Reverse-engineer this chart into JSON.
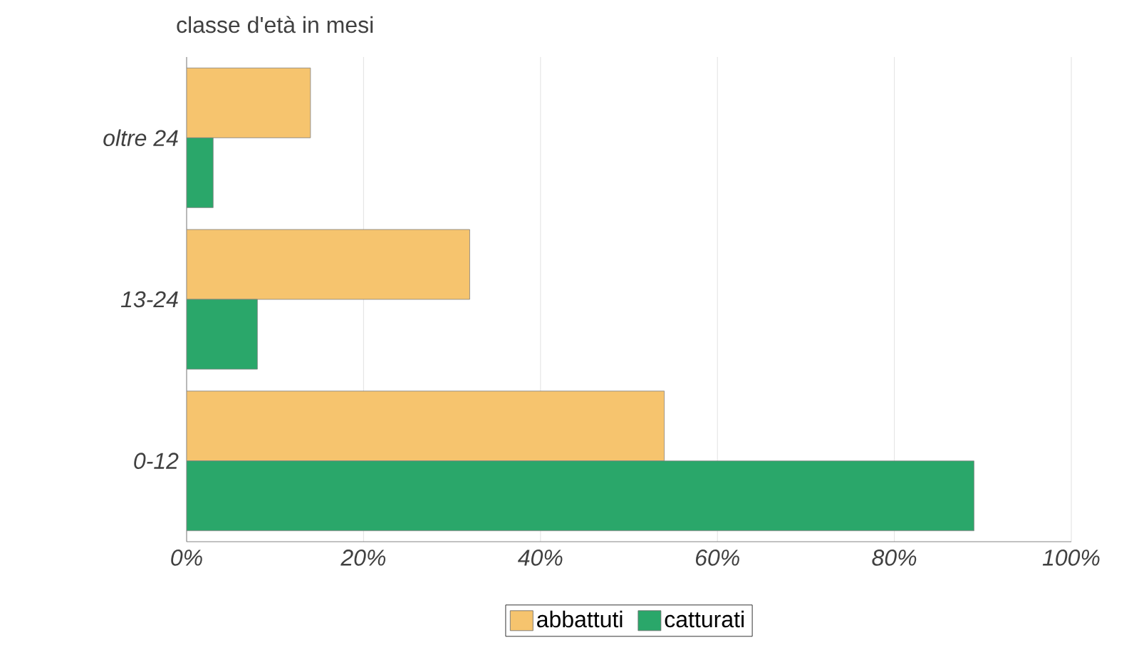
{
  "chart_data": {
    "type": "bar",
    "orientation": "horizontal",
    "ylabel": "classe d'età in mesi",
    "categories": [
      "oltre 24",
      "13-24",
      "0-12"
    ],
    "series": [
      {
        "name": "abbattuti",
        "color": "#f6c46e",
        "values": [
          14,
          32,
          54
        ]
      },
      {
        "name": "catturati",
        "color": "#2aa76a",
        "values": [
          3,
          8,
          89
        ]
      }
    ],
    "xlim": [
      0,
      100
    ],
    "xticks": [
      {
        "value": 0,
        "label": "0%"
      },
      {
        "value": 20,
        "label": "20%"
      },
      {
        "value": 40,
        "label": "40%"
      },
      {
        "value": 60,
        "label": "60%"
      },
      {
        "value": 80,
        "label": "80%"
      },
      {
        "value": 100,
        "label": "100%"
      }
    ],
    "grid": "x",
    "legend": "bottom"
  }
}
